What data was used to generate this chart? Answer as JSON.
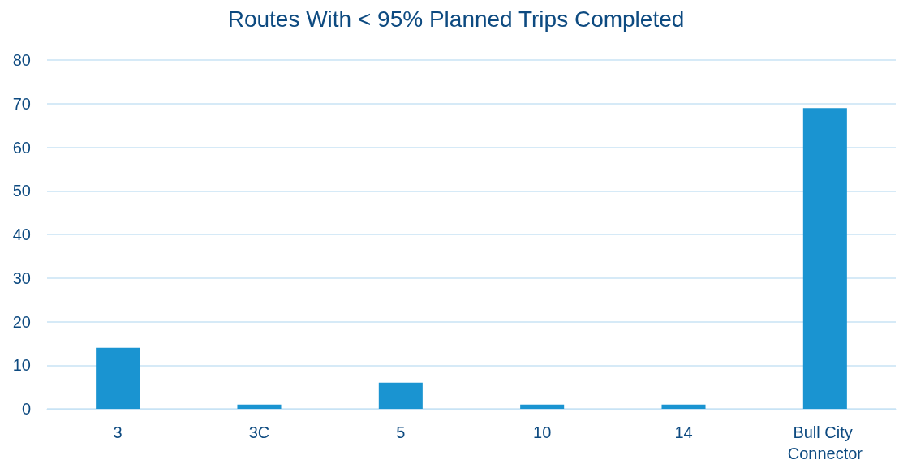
{
  "chart_data": {
    "type": "bar",
    "title": "Routes With < 95% Planned Trips Completed",
    "categories": [
      "3",
      "3C",
      "5",
      "10",
      "14",
      "Bull City Connector"
    ],
    "values": [
      14,
      1,
      6,
      1,
      1,
      69
    ],
    "color": "#1a94d1",
    "ylim": [
      0,
      80
    ],
    "yticks": [
      0,
      10,
      20,
      30,
      40,
      50,
      60,
      70,
      80
    ],
    "grid": "y"
  }
}
